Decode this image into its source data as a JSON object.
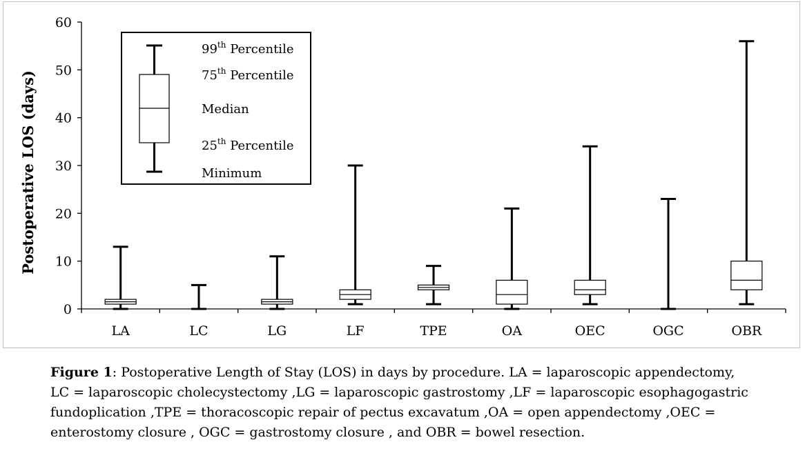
{
  "chart_data": {
    "type": "box",
    "ylabel": "Postoperative LOS (days)",
    "ylim": [
      0,
      60
    ],
    "yticks": [
      "0",
      "10",
      "20",
      "30",
      "40",
      "50",
      "60"
    ],
    "categories": [
      "LA",
      "LC",
      "LG",
      "LF",
      "TPE",
      "OA",
      "OEC",
      "OGC",
      "OBR"
    ],
    "boxes": [
      {
        "category": "LA",
        "min": 0,
        "q1": 1,
        "median": 1.5,
        "q3": 2,
        "max": 13
      },
      {
        "category": "LC",
        "min": 0,
        "q1": 0,
        "median": 0,
        "q3": 0,
        "max": 5
      },
      {
        "category": "LG",
        "min": 0,
        "q1": 1,
        "median": 1.5,
        "q3": 2,
        "max": 11
      },
      {
        "category": "LF",
        "min": 1,
        "q1": 2,
        "median": 3,
        "q3": 4,
        "max": 30
      },
      {
        "category": "TPE",
        "min": 1,
        "q1": 4,
        "median": 4.5,
        "q3": 5,
        "max": 9
      },
      {
        "category": "OA",
        "min": 0,
        "q1": 1,
        "median": 3,
        "q3": 6,
        "max": 21
      },
      {
        "category": "OEC",
        "min": 1,
        "q1": 3,
        "median": 4,
        "q3": 6,
        "max": 34
      },
      {
        "category": "OGC",
        "min": 0,
        "q1": 0,
        "median": 0,
        "q3": 0,
        "max": 23
      },
      {
        "category": "OBR",
        "min": 1,
        "q1": 4,
        "median": 6,
        "q3": 10,
        "max": 56
      }
    ],
    "legend": {
      "placement": "top-left",
      "p99_base": "99",
      "p99_sup": "th",
      "p99_rest": " Percentile",
      "p75_base": "75",
      "p75_sup": "th",
      "p75_rest": " Percentile",
      "median": "Median",
      "p25_base": "25",
      "p25_sup": "th",
      "p25_rest": " Percentile",
      "minimum": "Minimum"
    }
  },
  "caption": {
    "label": "Figure 1",
    "text": ": Postoperative Length of Stay (LOS) in days by procedure. LA = laparoscopic appendectomy, LC  = laparoscopic cholecystectomy ,LG  = laparoscopic gastrostomy ,LF  = laparoscopic esophagogastric fundoplication ,TPE  = thoracoscopic repair of pectus excavatum ,OA = open appendectomy ,OEC  = enterostomy closure , OGC = gastrostomy closure , and OBR = bowel resection."
  }
}
